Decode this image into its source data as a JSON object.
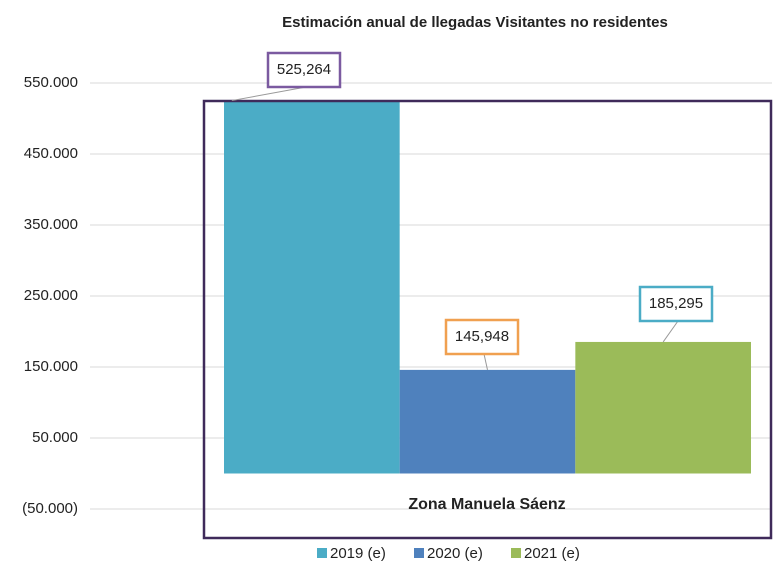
{
  "chart_data": {
    "type": "bar",
    "title": "Estimación anual de llegadas Visitantes no residentes",
    "categories": [
      "Zona Manuela Sáenz"
    ],
    "series": [
      {
        "name": "2019 (e)",
        "color": "#4bacc6",
        "values": [
          525264
        ],
        "value_labels": [
          "525,264"
        ],
        "label_border_color": "#7b5aa0"
      },
      {
        "name": "2020 (e)",
        "color": "#4f81bd",
        "values": [
          145948
        ],
        "value_labels": [
          "145,948"
        ],
        "label_border_color": "#f0a050"
      },
      {
        "name": "2021 (e)",
        "color": "#9bbb59",
        "values": [
          185295
        ],
        "value_labels": [
          "185,295"
        ],
        "label_border_color": "#4bacc6"
      }
    ],
    "ylim": [
      -50000,
      550000
    ],
    "yticks": [
      {
        "value": 550000,
        "label": "550.000"
      },
      {
        "value": 450000,
        "label": "450.000"
      },
      {
        "value": 350000,
        "label": "350.000"
      },
      {
        "value": 250000,
        "label": "250.000"
      },
      {
        "value": 150000,
        "label": "150.000"
      },
      {
        "value": 50000,
        "label": "50.000"
      },
      {
        "value": -50000,
        "label": "(50.000)"
      }
    ],
    "grid": true,
    "legend": "bottom"
  }
}
